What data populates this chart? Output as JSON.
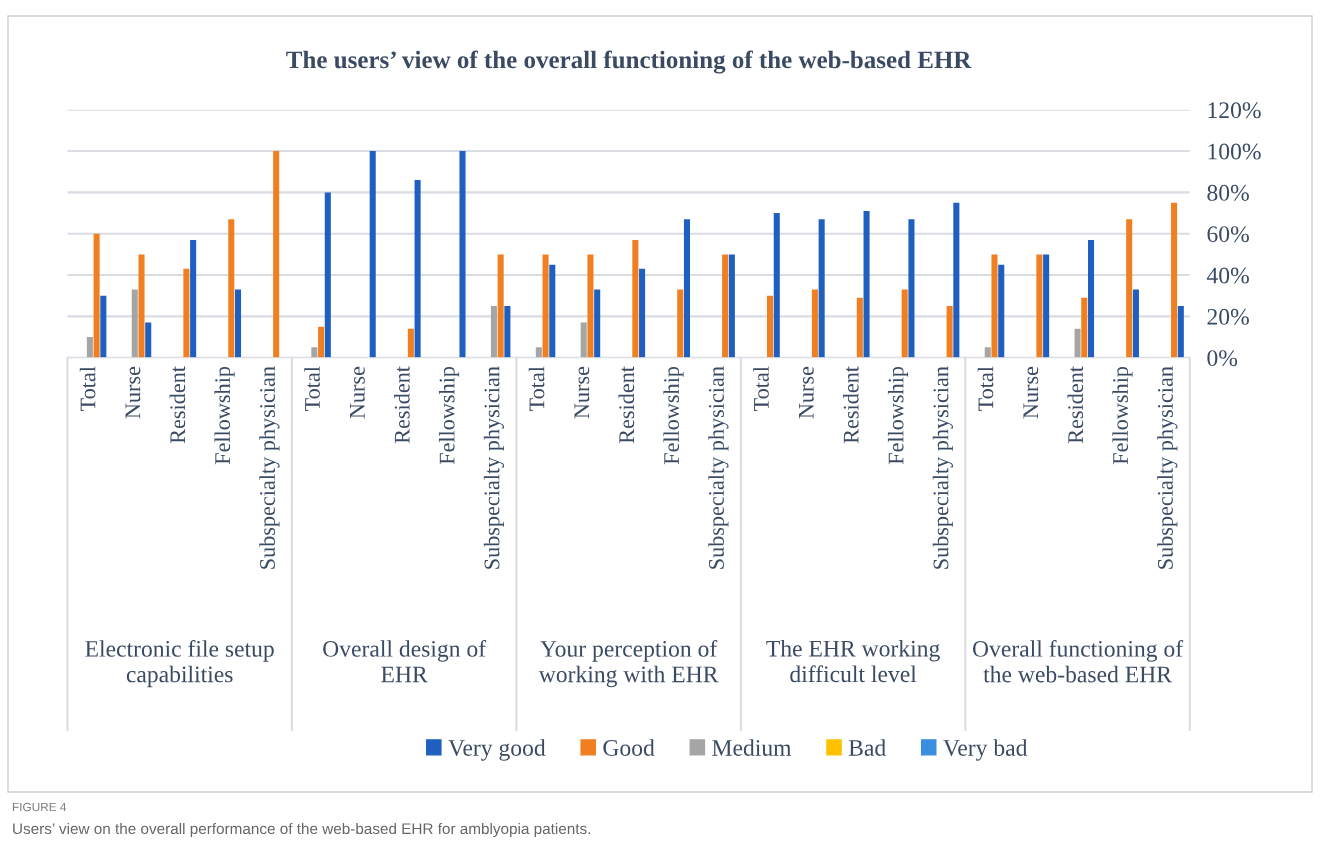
{
  "chart_data": {
    "type": "bar",
    "title": "The users’ view of the overall functioning of the web-based EHR",
    "categories": [
      "Total",
      "Nurse",
      "Resident",
      "Fellowship",
      "Subspecialty physician",
      "Total",
      "Nurse",
      "Resident",
      "Fellowship",
      "Subspecialty physician",
      "Total",
      "Nurse",
      "Resident",
      "Fellowship",
      "Subspecialty physician",
      "Total",
      "Nurse",
      "Resident",
      "Fellowship",
      "Subspecialty physician",
      "Total",
      "Nurse",
      "Resident",
      "Fellowship",
      "Subspecialty physician"
    ],
    "series": [
      {
        "name": "Very good",
        "color": "#1f5fbf",
        "values": [
          30,
          17,
          57,
          33,
          0,
          80,
          100,
          86,
          100,
          25,
          45,
          33,
          43,
          67,
          50,
          70,
          67,
          71,
          67,
          75,
          45,
          50,
          57,
          33,
          25
        ]
      },
      {
        "name": "Good",
        "color": "#f07f22",
        "values": [
          60,
          50,
          43,
          67,
          100,
          15,
          0,
          14,
          0,
          50,
          50,
          50,
          57,
          33,
          50,
          30,
          33,
          29,
          33,
          25,
          50,
          50,
          29,
          67,
          75
        ]
      },
      {
        "name": "Medium",
        "color": "#a5a5a5",
        "values": [
          10,
          33,
          0,
          0,
          0,
          5,
          0,
          0,
          0,
          25,
          5,
          17,
          0,
          0,
          0,
          0,
          0,
          0,
          0,
          0,
          5,
          0,
          14,
          0,
          0
        ]
      },
      {
        "name": "Bad",
        "color": "#ffc000",
        "values": [
          0,
          0,
          0,
          0,
          0,
          0,
          0,
          0,
          0,
          0,
          0,
          0,
          0,
          0,
          0,
          0,
          0,
          0,
          0,
          0,
          0,
          0,
          0,
          0,
          0
        ]
      },
      {
        "name": "Very bad",
        "color": "#3a8ee0",
        "values": [
          0,
          0,
          0,
          0,
          0,
          0,
          0,
          0,
          0,
          0,
          0,
          0,
          0,
          0,
          0,
          0,
          0,
          0,
          0,
          0,
          0,
          0,
          0,
          0,
          0
        ]
      }
    ],
    "ylim": [
      0,
      120
    ],
    "yticks": [
      {
        "value": 0,
        "label": "0%"
      },
      {
        "value": 20,
        "label": "20%"
      },
      {
        "value": 40,
        "label": "40%"
      },
      {
        "value": 60,
        "label": "60%"
      },
      {
        "value": 80,
        "label": "80%"
      },
      {
        "value": 100,
        "label": "100%"
      },
      {
        "value": 120,
        "label": "120%"
      }
    ],
    "grid": "y",
    "legend": "bottom",
    "annotations": [
      "Electronic file setup capabilities",
      "Overall design of EHR",
      "Your perception of working with EHR",
      "The EHR working difficult level",
      "Overall functioning of the web-based EHR",
      "FIGURE 4",
      "Users’ view on the overall performance of the web-based EHR for amblyopia patients."
    ]
  }
}
